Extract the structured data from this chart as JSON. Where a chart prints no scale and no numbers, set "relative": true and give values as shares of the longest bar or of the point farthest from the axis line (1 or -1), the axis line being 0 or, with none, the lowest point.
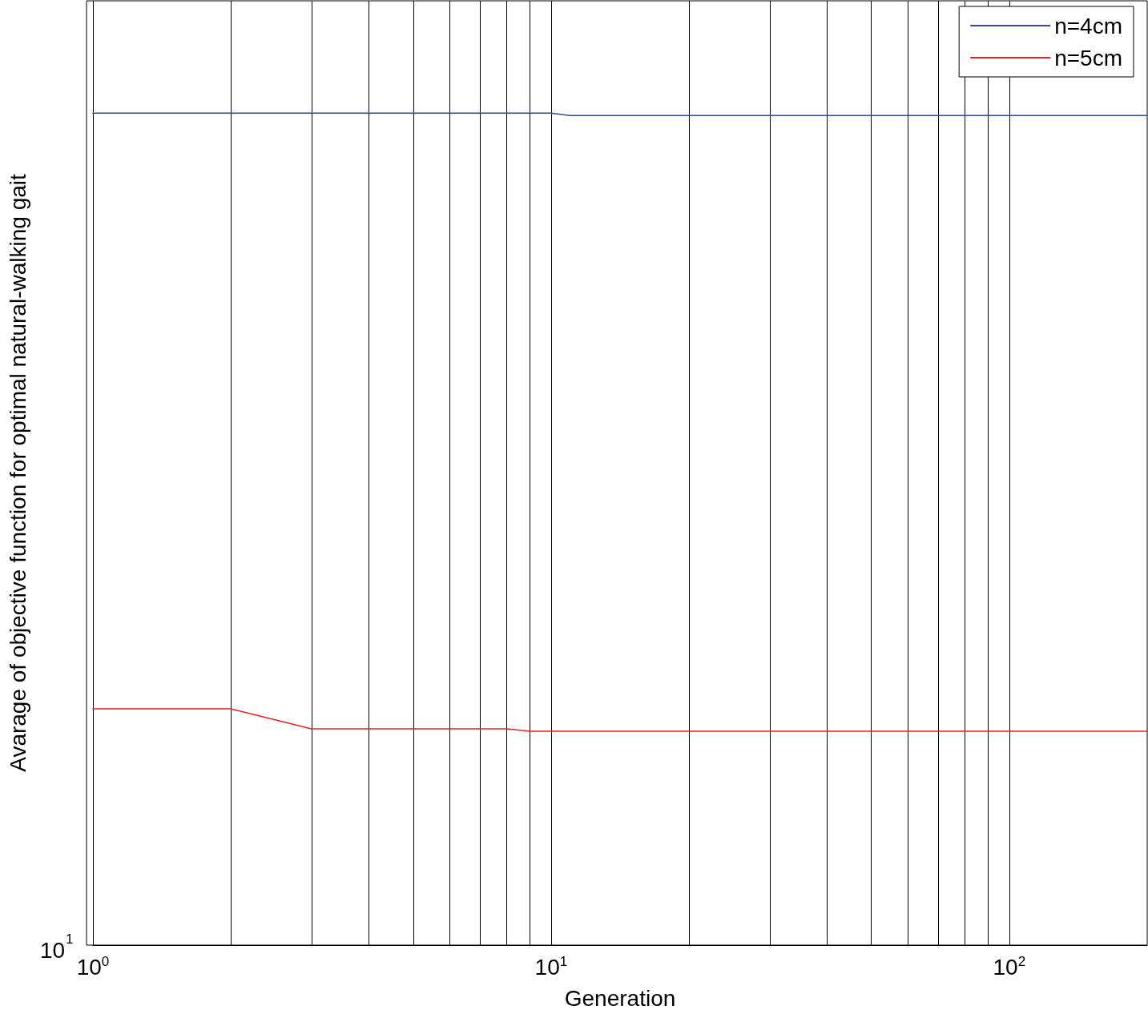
{
  "chart_data": {
    "type": "line",
    "xlabel": "Generation",
    "ylabel": "Avarage of objective function for optimal natural-walking gait",
    "annotations": [
      "10$^{1}$"
    ],
    "relative": true,
    "log": "x",
    "grid": "x",
    "legend": "top right",
    "marker": "none",
    "line_style": "solid",
    "xlim": [
      1,
      200
    ],
    "xticks": [
      {
        "value": 1,
        "label": "10$^{0}$"
      },
      {
        "value": 2,
        "label": null
      },
      {
        "value": 3,
        "label": null
      },
      {
        "value": 4,
        "label": null
      },
      {
        "value": 5,
        "label": null
      },
      {
        "value": 6,
        "label": null
      },
      {
        "value": 7,
        "label": null
      },
      {
        "value": 8,
        "label": null
      },
      {
        "value": 9,
        "label": null
      },
      {
        "value": 10,
        "label": "10$^{1}$"
      },
      {
        "value": 20,
        "label": null
      },
      {
        "value": 30,
        "label": null
      },
      {
        "value": 40,
        "label": null
      },
      {
        "value": 50,
        "label": null
      },
      {
        "value": 60,
        "label": null
      },
      {
        "value": 70,
        "label": null
      },
      {
        "value": 80,
        "label": null
      },
      {
        "value": 90,
        "label": null
      },
      {
        "value": 100,
        "label": "10$^{2}$"
      }
    ],
    "series": [
      {
        "name": "n=4cm",
        "color": "#2e4f94",
        "x": [
          1,
          10,
          11,
          200
        ],
        "values": [
          1,
          1,
          0.997,
          0.997
        ]
      },
      {
        "name": "n=5cm",
        "color": "#e8202a",
        "x": [
          1,
          2,
          3,
          8,
          9,
          200
        ],
        "values": [
          0.284,
          0.284,
          0.26,
          0.26,
          0.257,
          0.257
        ]
      }
    ]
  }
}
